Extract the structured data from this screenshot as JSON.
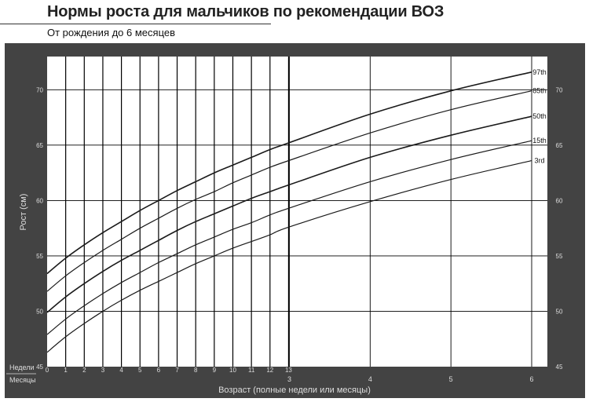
{
  "header": {
    "title": "Нормы роста для мальчиков по рекомендации ВОЗ",
    "subtitle": "От рождения до 6 месяцев"
  },
  "colors": {
    "background": "#434343",
    "plot": "#ffffff",
    "grid": "#000000",
    "curve": "#1a1a1a",
    "axis_text": "#dddddd"
  },
  "chart_data": {
    "type": "line",
    "title": "",
    "ylabel": "Рост (см)",
    "xlabel": "Возраст (полные недели или месяцы)",
    "ylim": [
      45,
      73
    ],
    "yticks": [
      45,
      50,
      55,
      60,
      65,
      70
    ],
    "grid": true,
    "x_units": "months",
    "week_axis_label": "Недели",
    "month_axis_label": "Месяцы",
    "week_ticks": [
      "0",
      "1",
      "2",
      "3",
      "4",
      "5",
      "6",
      "7",
      "8",
      "9",
      "10",
      "11",
      "12",
      "13"
    ],
    "month_ticks": [
      "3",
      "4",
      "5",
      "6"
    ],
    "x": [
      0,
      0.23,
      0.46,
      0.69,
      0.92,
      1.15,
      1.38,
      1.61,
      1.84,
      2.07,
      2.3,
      2.53,
      2.76,
      2.99,
      4,
      5,
      6
    ],
    "series": [
      {
        "name": "97th",
        "values": [
          53.4,
          54.8,
          56.0,
          57.1,
          58.1,
          59.1,
          60.0,
          60.9,
          61.7,
          62.5,
          63.2,
          63.9,
          64.6,
          65.2,
          67.8,
          69.9,
          71.6
        ]
      },
      {
        "name": "85th",
        "values": [
          51.8,
          53.2,
          54.4,
          55.5,
          56.5,
          57.5,
          58.4,
          59.3,
          60.1,
          60.8,
          61.6,
          62.3,
          63.0,
          63.6,
          66.1,
          68.2,
          69.9
        ]
      },
      {
        "name": "50th",
        "values": [
          49.9,
          51.3,
          52.5,
          53.6,
          54.6,
          55.5,
          56.4,
          57.3,
          58.1,
          58.8,
          59.5,
          60.2,
          60.8,
          61.4,
          63.9,
          65.9,
          67.6
        ]
      },
      {
        "name": "15th",
        "values": [
          47.9,
          49.3,
          50.5,
          51.6,
          52.6,
          53.5,
          54.4,
          55.2,
          56.0,
          56.7,
          57.4,
          58.0,
          58.7,
          59.3,
          61.7,
          63.7,
          65.4
        ]
      },
      {
        "name": "3rd",
        "values": [
          46.3,
          47.7,
          48.9,
          50.0,
          51.0,
          51.9,
          52.7,
          53.5,
          54.3,
          55.0,
          55.7,
          56.3,
          56.9,
          57.6,
          59.9,
          61.9,
          63.6
        ]
      }
    ]
  }
}
